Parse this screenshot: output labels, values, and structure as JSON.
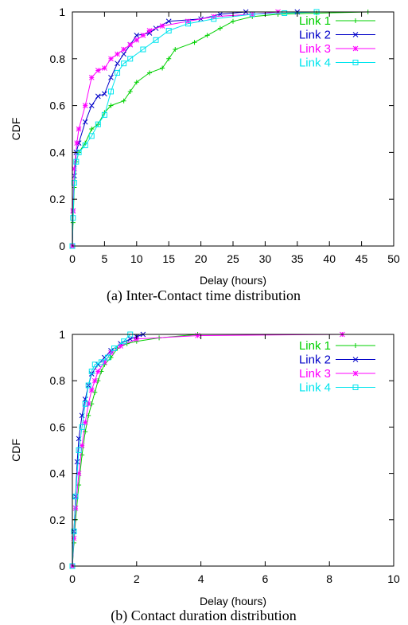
{
  "chart_data": [
    {
      "type": "line",
      "caption": "(a) Inter-Contact time distribution",
      "xlabel": "Delay (hours)",
      "ylabel": "CDF",
      "xlim": [
        0,
        50
      ],
      "ylim": [
        0,
        1
      ],
      "xticks": [
        0,
        5,
        10,
        15,
        20,
        25,
        30,
        35,
        40,
        45,
        50
      ],
      "yticks": [
        0,
        0.2,
        0.4,
        0.6,
        0.8,
        1
      ],
      "grid": false,
      "legend": "top-right",
      "series": [
        {
          "name": "Link 1",
          "color": "#00d000",
          "marker": "plus",
          "points": [
            [
              0,
              0
            ],
            [
              0.1,
              0.1
            ],
            [
              0.3,
              0.25
            ],
            [
              0.6,
              0.36
            ],
            [
              1,
              0.4
            ],
            [
              2,
              0.44
            ],
            [
              3,
              0.5
            ],
            [
              4,
              0.52
            ],
            [
              5,
              0.57
            ],
            [
              6,
              0.6
            ],
            [
              8,
              0.62
            ],
            [
              9,
              0.66
            ],
            [
              10,
              0.7
            ],
            [
              12,
              0.74
            ],
            [
              14,
              0.76
            ],
            [
              15,
              0.8
            ],
            [
              16,
              0.84
            ],
            [
              19,
              0.87
            ],
            [
              21,
              0.9
            ],
            [
              23,
              0.93
            ],
            [
              25,
              0.96
            ],
            [
              28,
              0.98
            ],
            [
              32,
              0.99
            ],
            [
              38,
              0.995
            ],
            [
              46,
              1
            ]
          ]
        },
        {
          "name": "Link 2",
          "color": "#0000c8",
          "marker": "x",
          "points": [
            [
              0,
              0
            ],
            [
              0.1,
              0.15
            ],
            [
              0.3,
              0.3
            ],
            [
              0.6,
              0.4
            ],
            [
              1,
              0.44
            ],
            [
              2,
              0.53
            ],
            [
              3,
              0.6
            ],
            [
              4,
              0.64
            ],
            [
              5,
              0.65
            ],
            [
              6,
              0.72
            ],
            [
              7,
              0.78
            ],
            [
              8,
              0.82
            ],
            [
              9,
              0.86
            ],
            [
              10,
              0.9
            ],
            [
              12,
              0.91
            ],
            [
              13,
              0.93
            ],
            [
              15,
              0.96
            ],
            [
              20,
              0.97
            ],
            [
              23,
              0.99
            ],
            [
              27,
              1
            ],
            [
              35,
              1
            ]
          ]
        },
        {
          "name": "Link 3",
          "color": "#ff00ff",
          "marker": "star",
          "points": [
            [
              0,
              0
            ],
            [
              0.1,
              0.15
            ],
            [
              0.3,
              0.33
            ],
            [
              0.7,
              0.44
            ],
            [
              1,
              0.5
            ],
            [
              2,
              0.6
            ],
            [
              3,
              0.72
            ],
            [
              4,
              0.75
            ],
            [
              5,
              0.76
            ],
            [
              6,
              0.8
            ],
            [
              7,
              0.82
            ],
            [
              8,
              0.84
            ],
            [
              9,
              0.86
            ],
            [
              10,
              0.88
            ],
            [
              11,
              0.9
            ],
            [
              12,
              0.92
            ],
            [
              14,
              0.94
            ],
            [
              18,
              0.96
            ],
            [
              22,
              0.98
            ],
            [
              28,
              0.99
            ],
            [
              32,
              1
            ]
          ]
        },
        {
          "name": "Link 4",
          "color": "#00e5ee",
          "marker": "square",
          "points": [
            [
              0,
              0
            ],
            [
              0.1,
              0.12
            ],
            [
              0.3,
              0.27
            ],
            [
              0.6,
              0.36
            ],
            [
              1,
              0.4
            ],
            [
              2,
              0.43
            ],
            [
              3,
              0.47
            ],
            [
              4,
              0.52
            ],
            [
              5,
              0.56
            ],
            [
              6,
              0.66
            ],
            [
              7,
              0.74
            ],
            [
              8,
              0.78
            ],
            [
              9,
              0.8
            ],
            [
              11,
              0.84
            ],
            [
              13,
              0.88
            ],
            [
              15,
              0.92
            ],
            [
              18,
              0.95
            ],
            [
              22,
              0.97
            ],
            [
              28,
              0.99
            ],
            [
              33,
              0.995
            ],
            [
              38,
              1
            ]
          ]
        }
      ]
    },
    {
      "type": "line",
      "caption": "(b) Contact duration distribution",
      "xlabel": "Delay (hours)",
      "ylabel": "CDF",
      "xlim": [
        0,
        10
      ],
      "ylim": [
        0,
        1
      ],
      "xticks": [
        0,
        2,
        4,
        6,
        8,
        10
      ],
      "yticks": [
        0,
        0.2,
        0.4,
        0.6,
        0.8,
        1
      ],
      "grid": false,
      "legend": "top-right",
      "series": [
        {
          "name": "Link 1",
          "color": "#00d000",
          "marker": "plus",
          "points": [
            [
              0,
              0
            ],
            [
              0.05,
              0.1
            ],
            [
              0.1,
              0.2
            ],
            [
              0.2,
              0.35
            ],
            [
              0.3,
              0.48
            ],
            [
              0.4,
              0.58
            ],
            [
              0.5,
              0.65
            ],
            [
              0.6,
              0.7
            ],
            [
              0.7,
              0.75
            ],
            [
              0.8,
              0.8
            ],
            [
              0.9,
              0.84
            ],
            [
              1,
              0.87
            ],
            [
              1.2,
              0.9
            ],
            [
              1.4,
              0.94
            ],
            [
              1.7,
              0.96
            ],
            [
              2,
              0.97
            ],
            [
              2.7,
              0.985
            ],
            [
              3.9,
              1
            ]
          ]
        },
        {
          "name": "Link 2",
          "color": "#0000c8",
          "marker": "x",
          "points": [
            [
              0,
              0
            ],
            [
              0.05,
              0.15
            ],
            [
              0.1,
              0.3
            ],
            [
              0.15,
              0.45
            ],
            [
              0.2,
              0.55
            ],
            [
              0.3,
              0.65
            ],
            [
              0.4,
              0.72
            ],
            [
              0.5,
              0.78
            ],
            [
              0.6,
              0.83
            ],
            [
              0.8,
              0.87
            ],
            [
              1,
              0.9
            ],
            [
              1.2,
              0.93
            ],
            [
              1.5,
              0.96
            ],
            [
              1.8,
              0.98
            ],
            [
              2,
              0.99
            ],
            [
              2.2,
              1
            ]
          ]
        },
        {
          "name": "Link 3",
          "color": "#ff00ff",
          "marker": "star",
          "points": [
            [
              0,
              0
            ],
            [
              0.05,
              0.12
            ],
            [
              0.1,
              0.25
            ],
            [
              0.2,
              0.4
            ],
            [
              0.3,
              0.52
            ],
            [
              0.4,
              0.62
            ],
            [
              0.5,
              0.7
            ],
            [
              0.6,
              0.76
            ],
            [
              0.7,
              0.8
            ],
            [
              0.8,
              0.84
            ],
            [
              1,
              0.88
            ],
            [
              1.2,
              0.92
            ],
            [
              1.5,
              0.95
            ],
            [
              2,
              0.98
            ],
            [
              3.9,
              0.995
            ],
            [
              8.4,
              1
            ]
          ]
        },
        {
          "name": "Link 4",
          "color": "#00e5ee",
          "marker": "square",
          "points": [
            [
              0,
              0
            ],
            [
              0.05,
              0.15
            ],
            [
              0.1,
              0.3
            ],
            [
              0.2,
              0.5
            ],
            [
              0.3,
              0.6
            ],
            [
              0.4,
              0.7
            ],
            [
              0.5,
              0.78
            ],
            [
              0.6,
              0.84
            ],
            [
              0.7,
              0.87
            ],
            [
              0.9,
              0.88
            ],
            [
              1.1,
              0.9
            ],
            [
              1.3,
              0.94
            ],
            [
              1.6,
              0.97
            ],
            [
              1.8,
              1
            ]
          ]
        }
      ]
    }
  ]
}
